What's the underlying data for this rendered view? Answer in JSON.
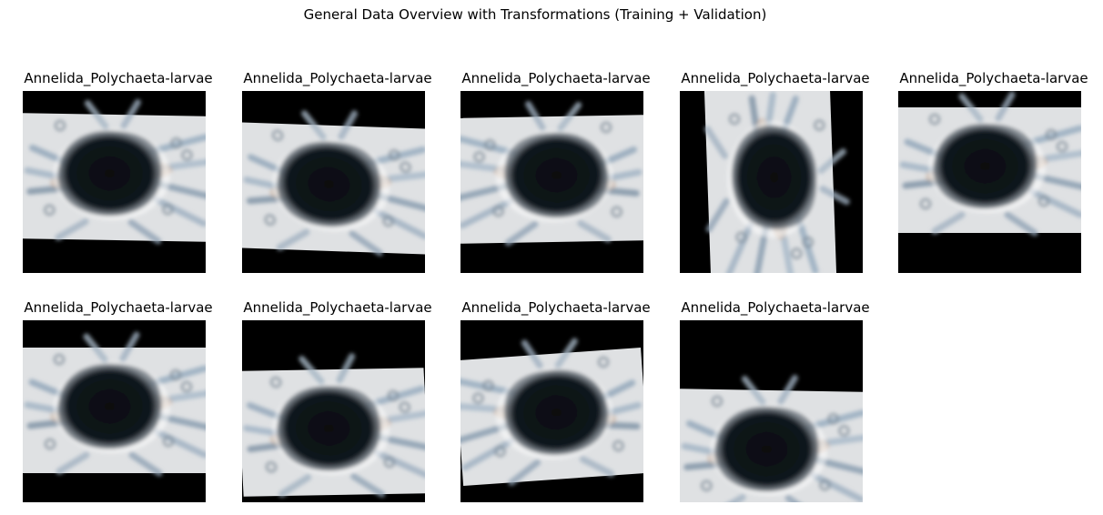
{
  "figure": {
    "title": "General Data Overview with Transformations (Training + Validation)"
  },
  "samples": [
    {
      "label": "Annelida_Polychaeta-larvae",
      "transform": {
        "rotate": 1,
        "shift_y": -6,
        "flip": false
      }
    },
    {
      "label": "Annelida_Polychaeta-larvae",
      "transform": {
        "rotate": 2,
        "shift_y": 6,
        "flip": false,
        "skew": 3
      }
    },
    {
      "label": "Annelida_Polychaeta-larvae",
      "transform": {
        "rotate": -1,
        "shift_y": -4,
        "flip": true
      }
    },
    {
      "label": "Annelida_Polychaeta-larvae",
      "transform": {
        "rotate": 88,
        "shift_y": 0,
        "flip": false
      }
    },
    {
      "label": "Annelida_Polychaeta-larvae",
      "transform": {
        "rotate": 0,
        "shift_y": -14,
        "flip": false
      }
    },
    {
      "label": "Annelida_Polychaeta-larvae",
      "transform": {
        "rotate": 0,
        "shift_y": -2,
        "flip": false
      }
    },
    {
      "label": "Annelida_Polychaeta-larvae",
      "transform": {
        "rotate": -1,
        "shift_y": 22,
        "flip": false,
        "skew": 2
      }
    },
    {
      "label": "Annelida_Polychaeta-larvae",
      "transform": {
        "rotate": -4,
        "shift_y": 5,
        "flip": true
      }
    },
    {
      "label": "Annelida_Polychaeta-larvae",
      "transform": {
        "rotate": 1,
        "shift_y": 45,
        "flip": false
      }
    }
  ],
  "colors": {
    "background_fill": "#000000",
    "field": "#dfe1e3",
    "organism": "#0a0d10"
  }
}
